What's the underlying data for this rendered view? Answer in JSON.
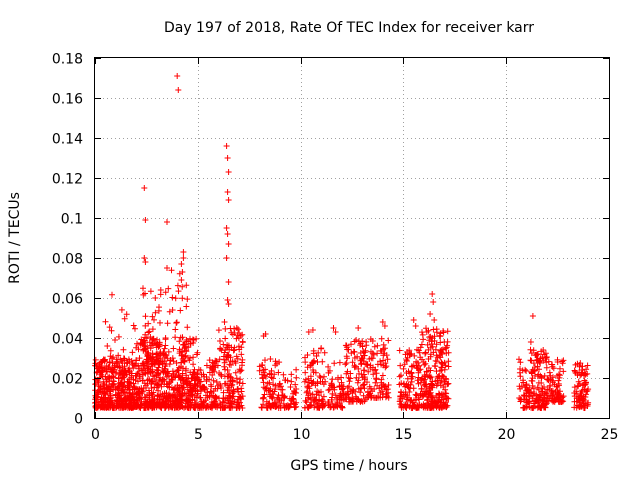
{
  "chart_data": {
    "type": "scatter",
    "title": "Day 197 of 2018, Rate Of TEC Index for receiver karr",
    "xlabel": "GPS time / hours",
    "ylabel": "ROTI / TECUs",
    "xlim": [
      0,
      25
    ],
    "ylim": [
      0,
      0.18
    ],
    "xticks": [
      "0",
      "5",
      "10",
      "15",
      "20",
      "25"
    ],
    "yticks": [
      "0",
      "0.02",
      "0.04",
      "0.06",
      "0.08",
      "0.1",
      "0.12",
      "0.14",
      "0.16",
      "0.18"
    ],
    "grid": true,
    "marker": "+",
    "color": "#ff0000",
    "series": [
      {
        "name": "ROTI",
        "clusters": [
          {
            "x": [
              0.0,
              2.0
            ],
            "ylow": 0.005,
            "yhigh": 0.03,
            "n": 420
          },
          {
            "x": [
              0.3,
              2.0
            ],
            "ylow": 0.02,
            "yhigh": 0.062,
            "n": 40
          },
          {
            "x": [
              2.0,
              3.2
            ],
            "ylow": 0.005,
            "yhigh": 0.04,
            "n": 260
          },
          {
            "x": [
              2.3,
              3.2
            ],
            "ylow": 0.03,
            "yhigh": 0.065,
            "n": 40
          },
          {
            "x": [
              3.2,
              4.2
            ],
            "ylow": 0.005,
            "yhigh": 0.035,
            "n": 180
          },
          {
            "x": [
              3.4,
              4.5
            ],
            "ylow": 0.035,
            "yhigh": 0.075,
            "n": 30
          },
          {
            "x": [
              4.1,
              5.0
            ],
            "ylow": 0.005,
            "yhigh": 0.04,
            "n": 180
          },
          {
            "x": [
              5.0,
              6.0
            ],
            "ylow": 0.005,
            "yhigh": 0.03,
            "n": 110
          },
          {
            "x": [
              6.0,
              7.2
            ],
            "ylow": 0.005,
            "yhigh": 0.045,
            "n": 170
          },
          {
            "x": [
              8.0,
              9.0
            ],
            "ylow": 0.005,
            "yhigh": 0.03,
            "n": 90
          },
          {
            "x": [
              9.0,
              9.8
            ],
            "ylow": 0.005,
            "yhigh": 0.025,
            "n": 55
          },
          {
            "x": [
              10.2,
              11.2
            ],
            "ylow": 0.005,
            "yhigh": 0.035,
            "n": 100
          },
          {
            "x": [
              11.3,
              12.2
            ],
            "ylow": 0.005,
            "yhigh": 0.03,
            "n": 70
          },
          {
            "x": [
              12.2,
              13.2
            ],
            "ylow": 0.008,
            "yhigh": 0.04,
            "n": 100
          },
          {
            "x": [
              13.2,
              14.3
            ],
            "ylow": 0.01,
            "yhigh": 0.04,
            "n": 90
          },
          {
            "x": [
              14.8,
              15.8
            ],
            "ylow": 0.005,
            "yhigh": 0.035,
            "n": 120
          },
          {
            "x": [
              15.8,
              17.2
            ],
            "ylow": 0.005,
            "yhigh": 0.045,
            "n": 240
          },
          {
            "x": [
              20.6,
              21.1
            ],
            "ylow": 0.005,
            "yhigh": 0.03,
            "n": 45
          },
          {
            "x": [
              21.1,
              22.0
            ],
            "ylow": 0.005,
            "yhigh": 0.035,
            "n": 130
          },
          {
            "x": [
              22.0,
              22.8
            ],
            "ylow": 0.008,
            "yhigh": 0.03,
            "n": 80
          },
          {
            "x": [
              23.3,
              24.0
            ],
            "ylow": 0.005,
            "yhigh": 0.028,
            "n": 90
          }
        ],
        "points": [
          [
            2.4,
            0.115
          ],
          [
            2.45,
            0.099
          ],
          [
            2.4,
            0.08
          ],
          [
            2.45,
            0.078
          ],
          [
            3.5,
            0.098
          ],
          [
            3.5,
            0.075
          ],
          [
            3.2,
            0.064
          ],
          [
            4.0,
            0.171
          ],
          [
            4.05,
            0.164
          ],
          [
            4.3,
            0.083
          ],
          [
            4.3,
            0.08
          ],
          [
            4.2,
            0.077
          ],
          [
            4.25,
            0.073
          ],
          [
            4.2,
            0.069
          ],
          [
            6.4,
            0.136
          ],
          [
            6.45,
            0.13
          ],
          [
            6.5,
            0.123
          ],
          [
            6.45,
            0.113
          ],
          [
            6.5,
            0.109
          ],
          [
            6.4,
            0.095
          ],
          [
            6.45,
            0.092
          ],
          [
            6.5,
            0.087
          ],
          [
            6.4,
            0.08
          ],
          [
            6.5,
            0.068
          ],
          [
            6.45,
            0.059
          ],
          [
            6.5,
            0.057
          ],
          [
            6.3,
            0.048
          ],
          [
            16.4,
            0.062
          ],
          [
            16.45,
            0.058
          ],
          [
            16.3,
            0.052
          ],
          [
            16.5,
            0.049
          ],
          [
            15.5,
            0.049
          ],
          [
            15.6,
            0.046
          ],
          [
            14.0,
            0.048
          ],
          [
            14.1,
            0.046
          ],
          [
            21.3,
            0.051
          ],
          [
            21.2,
            0.038
          ],
          [
            10.6,
            0.044
          ],
          [
            10.4,
            0.043
          ],
          [
            11.6,
            0.045
          ],
          [
            11.7,
            0.043
          ],
          [
            12.8,
            0.045
          ],
          [
            12.7,
            0.039
          ],
          [
            8.3,
            0.042
          ],
          [
            8.2,
            0.041
          ],
          [
            7.0,
            0.04
          ],
          [
            0.6,
            0.036
          ]
        ]
      }
    ]
  }
}
